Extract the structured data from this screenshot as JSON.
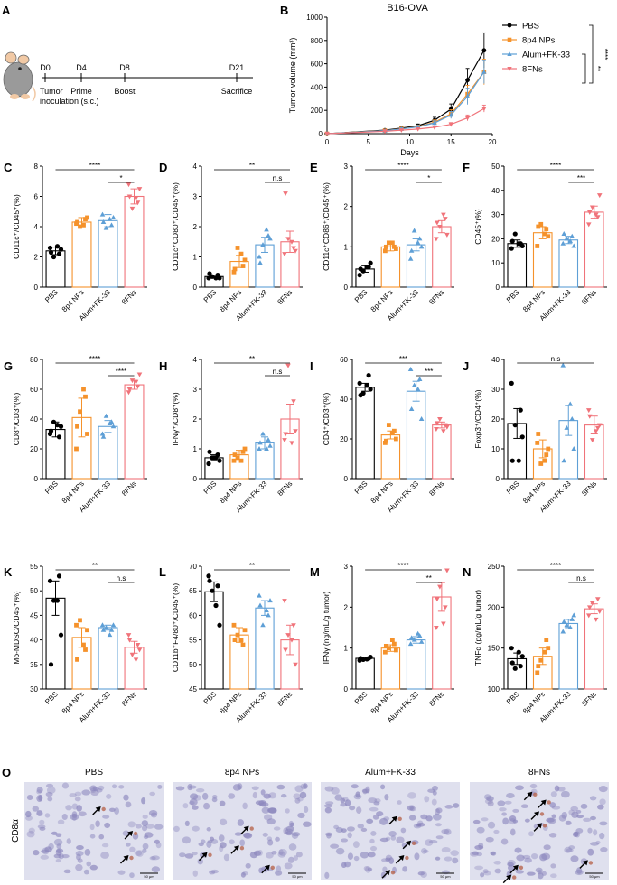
{
  "colors": {
    "PBS": "#000000",
    "8p4 NPs": "#F5922B",
    "Alum+FK-33": "#5E9FD6",
    "8FNs": "#F0737A"
  },
  "groups": [
    "PBS",
    "8p4 NPs",
    "Alum+FK-33",
    "8FNs"
  ],
  "panel_a": {
    "letter": "A",
    "events": [
      {
        "day": "D0",
        "label": "Tumor\ninoculation (s.c.)"
      },
      {
        "day": "D4",
        "label": "Prime"
      },
      {
        "day": "D8",
        "label": "Boost"
      },
      {
        "day": "D21",
        "label": "Sacrifice"
      }
    ]
  },
  "panel_b": {
    "letter": "B",
    "title": "B16-OVA",
    "xlabel": "Days",
    "ylabel": "Tumor volume (mm³)",
    "xlim": [
      0,
      20
    ],
    "ylim": [
      0,
      1000
    ],
    "xticks": [
      0,
      5,
      10,
      15,
      20
    ],
    "yticks": [
      0,
      200,
      400,
      600,
      800,
      1000
    ],
    "days": [
      0,
      7,
      9,
      11,
      13,
      15,
      17,
      19
    ],
    "series": [
      {
        "name": "PBS",
        "marker": "circle",
        "values": [
          0,
          30,
          48,
          68,
          115,
          210,
          460,
          715
        ],
        "err": [
          0,
          8,
          12,
          15,
          25,
          45,
          100,
          150
        ]
      },
      {
        "name": "8p4 NPs",
        "marker": "square",
        "values": [
          0,
          26,
          42,
          60,
          98,
          170,
          340,
          530
        ],
        "err": [
          0,
          7,
          10,
          13,
          20,
          35,
          75,
          110
        ]
      },
      {
        "name": "Alum+FK-33",
        "marker": "triangle",
        "values": [
          0,
          25,
          40,
          58,
          92,
          160,
          320,
          530
        ],
        "err": [
          0,
          6,
          9,
          12,
          18,
          30,
          70,
          100
        ]
      },
      {
        "name": "8FNs",
        "marker": "down",
        "values": [
          0,
          20,
          30,
          40,
          55,
          80,
          135,
          215
        ],
        "err": [
          0,
          5,
          7,
          8,
          10,
          15,
          25,
          30
        ]
      }
    ],
    "significance": [
      "****",
      "**"
    ]
  },
  "bar_panels": [
    {
      "letter": "C",
      "ylabel": "CD11c⁺/CD45⁺(%)",
      "ymin": 0,
      "ymax": 8,
      "yticks": [
        0,
        2,
        4,
        6,
        8
      ],
      "means": [
        2.4,
        4.3,
        4.4,
        6.0
      ],
      "sems": [
        0.25,
        0.3,
        0.4,
        0.5
      ],
      "points": [
        [
          2.6,
          2.2,
          2.0,
          2.5,
          2.3,
          2.7
        ],
        [
          4.2,
          4.5,
          4.0,
          4.6,
          4.3,
          4.1
        ],
        [
          4.8,
          4.1,
          3.9,
          4.6,
          4.3,
          4.5
        ],
        [
          6.8,
          5.6,
          5.2,
          6.5,
          6.0,
          5.9
        ]
      ],
      "sig": [
        {
          "a": 0,
          "b": 3,
          "t": "****"
        },
        {
          "a": 2,
          "b": 3,
          "t": "*"
        }
      ]
    },
    {
      "letter": "D",
      "ylabel": "CD11c⁺CD80⁺/CD45⁺(%)",
      "ymin": 0,
      "ymax": 4,
      "yticks": [
        0,
        1,
        2,
        3,
        4
      ],
      "means": [
        0.35,
        0.85,
        1.4,
        1.5
      ],
      "sems": [
        0.05,
        0.2,
        0.25,
        0.35
      ],
      "points": [
        [
          0.3,
          0.4,
          0.35,
          0.3,
          0.45,
          0.3
        ],
        [
          0.5,
          0.7,
          1.3,
          0.9,
          0.6,
          1.1
        ],
        [
          1.0,
          1.7,
          1.4,
          1.6,
          0.8,
          1.9
        ],
        [
          1.1,
          1.3,
          1.6,
          1.2,
          3.1,
          1.5
        ]
      ],
      "sig": [
        {
          "a": 0,
          "b": 3,
          "t": "**"
        },
        {
          "a": 2,
          "b": 3,
          "t": "n.s"
        }
      ]
    },
    {
      "letter": "E",
      "ylabel": "CD11c⁺CD86⁺/CD45⁺(%)",
      "ymin": 0,
      "ymax": 3,
      "yticks": [
        0,
        1,
        2,
        3
      ],
      "means": [
        0.45,
        1.0,
        1.05,
        1.5
      ],
      "sems": [
        0.08,
        0.1,
        0.15,
        0.15
      ],
      "points": [
        [
          0.3,
          0.5,
          0.4,
          0.6,
          0.45,
          0.5
        ],
        [
          0.9,
          1.0,
          1.1,
          0.95,
          1.0,
          1.1
        ],
        [
          0.7,
          1.2,
          1.4,
          1.0,
          0.9,
          1.1
        ],
        [
          1.2,
          1.7,
          1.5,
          1.3,
          1.6,
          1.8
        ]
      ],
      "sig": [
        {
          "a": 0,
          "b": 3,
          "t": "****"
        },
        {
          "a": 2,
          "b": 3,
          "t": "*"
        }
      ]
    },
    {
      "letter": "F",
      "ylabel": "CD45⁺(%)",
      "ymin": 0,
      "ymax": 50,
      "yticks": [
        0,
        10,
        20,
        30,
        40,
        50
      ],
      "means": [
        18,
        22.5,
        19.5,
        31
      ],
      "sems": [
        1.5,
        2.5,
        1.5,
        2.5
      ],
      "points": [
        [
          16,
          18,
          22,
          17,
          19,
          18
        ],
        [
          17,
          24,
          26,
          21,
          25,
          22
        ],
        [
          18,
          21,
          20,
          17,
          22,
          19
        ],
        [
          26,
          29,
          33,
          38,
          31,
          30
        ]
      ],
      "sig": [
        {
          "a": 0,
          "b": 3,
          "t": "****"
        },
        {
          "a": 2,
          "b": 3,
          "t": "***"
        }
      ]
    },
    {
      "letter": "G",
      "ylabel": "CD8⁺/CD3⁺(%)",
      "ymin": 0,
      "ymax": 80,
      "yticks": [
        0,
        20,
        40,
        60,
        80
      ],
      "means": [
        33,
        41,
        35,
        63
      ],
      "sems": [
        5,
        13,
        4,
        3
      ],
      "points": [
        [
          30,
          28,
          38,
          35,
          32,
          36
        ],
        [
          20,
          55,
          45,
          30,
          35,
          60
        ],
        [
          30,
          38,
          42,
          35,
          28,
          37
        ],
        [
          58,
          62,
          66,
          70,
          60,
          65
        ]
      ],
      "sig": [
        {
          "a": 0,
          "b": 3,
          "t": "****"
        },
        {
          "a": 2,
          "b": 3,
          "t": "****"
        }
      ]
    },
    {
      "letter": "H",
      "ylabel": "IFNγ⁺/CD8⁺(%)",
      "ymin": 0,
      "ymax": 4,
      "yticks": [
        0,
        1,
        2,
        3,
        4
      ],
      "means": [
        0.7,
        0.8,
        1.2,
        2.0
      ],
      "sems": [
        0.1,
        0.15,
        0.2,
        0.5
      ],
      "points": [
        [
          0.5,
          0.8,
          0.7,
          0.6,
          0.9,
          0.7
        ],
        [
          0.6,
          0.9,
          0.7,
          1.0,
          0.8,
          0.6
        ],
        [
          1.0,
          1.3,
          1.5,
          1.1,
          1.2,
          1.0
        ],
        [
          1.3,
          2.6,
          3.8,
          1.6,
          1.5,
          1.2
        ]
      ],
      "sig": [
        {
          "a": 0,
          "b": 3,
          "t": "**"
        },
        {
          "a": 2,
          "b": 3,
          "t": "n.s"
        }
      ]
    },
    {
      "letter": "I",
      "ylabel": "CD4⁺/CD3⁺(%)",
      "ymin": 0,
      "ymax": 60,
      "yticks": [
        0,
        20,
        40,
        60
      ],
      "means": [
        46,
        22,
        44,
        27
      ],
      "sems": [
        2,
        2,
        5,
        1.5
      ],
      "points": [
        [
          48,
          52,
          43,
          45,
          42,
          47
        ],
        [
          18,
          24,
          27,
          20,
          19,
          23
        ],
        [
          55,
          50,
          47,
          30,
          35,
          45
        ],
        [
          25,
          27,
          30,
          26,
          28,
          24
        ]
      ],
      "sig": [
        {
          "a": 0,
          "b": 3,
          "t": "***"
        },
        {
          "a": 2,
          "b": 3,
          "t": "***"
        }
      ]
    },
    {
      "letter": "J",
      "ylabel": "Foxp3⁺/CD4⁺(%)",
      "ymin": 0,
      "ymax": 40,
      "yticks": [
        0,
        10,
        20,
        30,
        40
      ],
      "means": [
        18.5,
        10,
        19.5,
        18
      ],
      "sems": [
        5,
        3,
        5,
        3
      ],
      "points": [
        [
          32,
          23,
          18,
          14,
          6,
          6
        ],
        [
          12,
          8,
          5,
          10,
          15,
          6
        ],
        [
          38,
          20,
          17,
          10,
          6,
          25
        ],
        [
          23,
          17,
          13,
          18,
          21,
          16
        ]
      ],
      "sig": [
        {
          "a": 0,
          "b": 3,
          "t": "n.s"
        }
      ]
    },
    {
      "letter": "K",
      "ylabel": "Mo-MDSC/CD45⁺(%)",
      "ymin": 30,
      "ymax": 55,
      "yticks": [
        30,
        35,
        40,
        45,
        50,
        55
      ],
      "means": [
        48.5,
        40.5,
        42.5,
        38.5
      ],
      "sems": [
        3.5,
        2,
        0.5,
        1.2
      ],
      "points": [
        [
          52,
          53,
          48,
          41,
          35,
          48
        ],
        [
          43,
          38,
          44,
          42,
          36,
          39
        ],
        [
          43,
          42,
          42.5,
          43,
          42,
          41
        ],
        [
          41,
          39,
          37,
          38,
          40,
          36
        ]
      ],
      "sig": [
        {
          "a": 0,
          "b": 3,
          "t": "**"
        },
        {
          "a": 2,
          "b": 3,
          "t": "n.s"
        }
      ]
    },
    {
      "letter": "L",
      "ylabel": "CD11b⁺F4/80⁺/CD45⁺(%)",
      "ymin": 45,
      "ymax": 70,
      "yticks": [
        45,
        50,
        55,
        60,
        65,
        70
      ],
      "means": [
        64.8,
        56,
        61.5,
        55
      ],
      "sems": [
        2,
        1.5,
        1.5,
        3
      ],
      "points": [
        [
          68,
          66,
          65,
          58,
          67,
          62
        ],
        [
          58,
          54,
          56,
          57,
          55,
          55
        ],
        [
          64,
          60,
          58,
          63,
          62,
          61
        ],
        [
          63,
          58,
          56,
          50,
          53,
          55
        ]
      ],
      "sig": [
        {
          "a": 0,
          "b": 3,
          "t": "**"
        }
      ]
    },
    {
      "letter": "M",
      "ylabel": "IFNγ (ng/mL/g tumor)",
      "ymin": 0,
      "ymax": 3,
      "yticks": [
        0,
        1,
        2,
        3
      ],
      "means": [
        0.75,
        1.0,
        1.2,
        2.25
      ],
      "sems": [
        0.03,
        0.08,
        0.08,
        0.35
      ],
      "points": [
        [
          0.7,
          0.75,
          0.72,
          0.78,
          0.75,
          0.73
        ],
        [
          0.9,
          1.1,
          1.0,
          0.95,
          1.05,
          1.2
        ],
        [
          1.1,
          1.3,
          1.2,
          1.15,
          1.25,
          1.35
        ],
        [
          1.5,
          2.0,
          2.5,
          2.9,
          2.2,
          1.6
        ]
      ],
      "sig": [
        {
          "a": 0,
          "b": 3,
          "t": "****"
        },
        {
          "a": 2,
          "b": 3,
          "t": "**"
        }
      ]
    },
    {
      "letter": "N",
      "ylabel": "TNFα (pg/mL/g tumor)",
      "ymin": 100,
      "ymax": 250,
      "yticks": [
        100,
        150,
        200,
        250
      ],
      "means": [
        137,
        140,
        180,
        198
      ],
      "sems": [
        7,
        10,
        5,
        6
      ],
      "points": [
        [
          150,
          128,
          125,
          140,
          132,
          145
        ],
        [
          120,
          160,
          135,
          150,
          128,
          145
        ],
        [
          170,
          185,
          178,
          190,
          182,
          175
        ],
        [
          190,
          210,
          205,
          195,
          200,
          185
        ]
      ],
      "sig": [
        {
          "a": 0,
          "b": 3,
          "t": "****"
        },
        {
          "a": 2,
          "b": 3,
          "t": "n.s"
        }
      ]
    }
  ],
  "panel_o": {
    "letter": "O",
    "row_label": "CD8α",
    "titles": [
      "PBS",
      "8p4 NPs",
      "Alum+FK-33",
      "8FNs"
    ],
    "scale": "50 μm"
  }
}
